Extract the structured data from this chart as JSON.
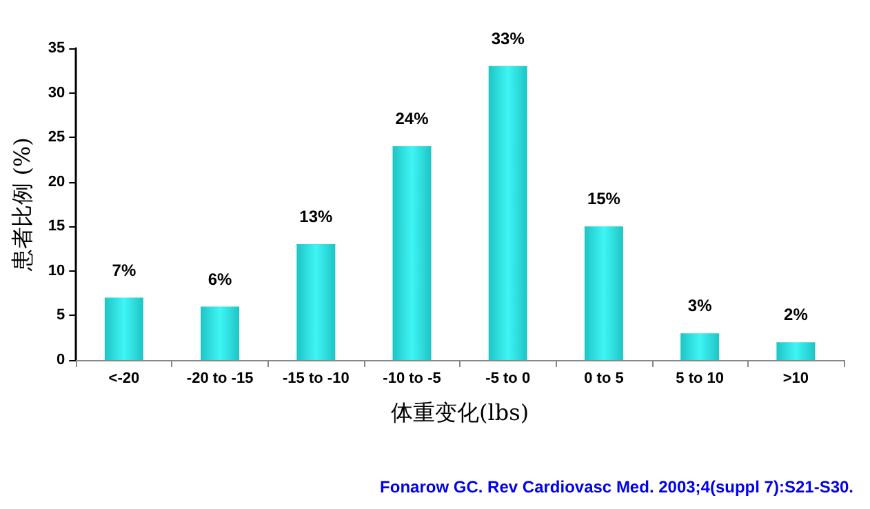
{
  "chart_data": {
    "type": "bar",
    "categories": [
      "<-20",
      "-20 to -15",
      "-15 to -10",
      "-10 to -5",
      "-5 to 0",
      "0 to 5",
      "5 to 10",
      ">10"
    ],
    "values": [
      7,
      6,
      13,
      24,
      33,
      15,
      3,
      2
    ],
    "value_labels": [
      "7%",
      "6%",
      "13%",
      "24%",
      "33%",
      "15%",
      "3%",
      "2%"
    ],
    "color": "#1fc4c4",
    "xlabel": "体重变化(lbs)",
    "ylabel": "患者比例 (%)",
    "ylim": [
      0,
      35
    ],
    "yticks": [
      0,
      5,
      10,
      15,
      20,
      25,
      30,
      35
    ],
    "grid": false,
    "annotations": [
      "Fonarow GC. Rev Cardiovasc Med. 2003;4(suppl 7):S21-S30."
    ]
  }
}
